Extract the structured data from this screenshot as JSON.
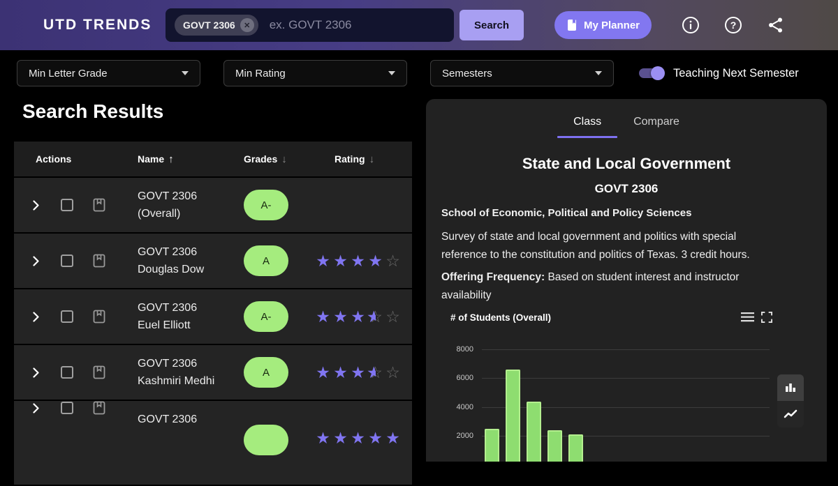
{
  "navbar": {
    "logo": "UTD TRENDS",
    "search": {
      "chip": "GOVT 2306",
      "placeholder": "ex. GOVT 2306"
    },
    "search_button": "Search",
    "planner_button": "My Planner",
    "icons": [
      "info-icon",
      "help-icon",
      "share-icon"
    ]
  },
  "filters": {
    "dropdowns": [
      "Min Letter Grade",
      "Min Rating",
      "Semesters"
    ],
    "toggle": {
      "label": "Teaching Next Semester",
      "on": true
    }
  },
  "results": {
    "title": "Search Results",
    "columns": [
      {
        "label": "Actions",
        "sort": null,
        "active": false
      },
      {
        "label": "Name",
        "sort": "asc",
        "active": true
      },
      {
        "label": "Grades",
        "sort": "desc",
        "active": false
      },
      {
        "label": "Rating",
        "sort": "desc",
        "active": false
      }
    ],
    "rows": [
      {
        "name": "GOVT 2306 (Overall)",
        "grade": "A-",
        "stars": []
      },
      {
        "name": "GOVT 2306 Douglas Dow",
        "grade": "A",
        "stars": [
          1,
          1,
          1,
          1,
          0
        ]
      },
      {
        "name": "GOVT 2306 Euel Elliott",
        "grade": "A-",
        "stars": [
          1,
          1,
          1,
          0.5,
          0
        ]
      },
      {
        "name": "GOVT 2306 Kashmiri Medhi",
        "grade": "A",
        "stars": [
          1,
          1,
          1,
          0.5,
          0
        ]
      },
      {
        "name": "GOVT 2306",
        "grade": "",
        "stars": [
          1,
          1,
          1,
          1,
          1
        ],
        "cut_off": true
      }
    ]
  },
  "panel": {
    "tabs": [
      {
        "label": "Class",
        "active": true
      },
      {
        "label": "Compare",
        "active": false
      }
    ],
    "course_title": "State and Local Government",
    "course_code": "GOVT 2306",
    "school": "School of Economic, Political and Policy Sciences",
    "description": "Survey of state and local government and politics with special reference to the constitution and politics of Texas. 3 credit hours.",
    "offering_label": "Offering Frequency:",
    "offering_text": " Based on student interest and instructor availability"
  },
  "chart_data": {
    "type": "bar",
    "title": "# of Students (Overall)",
    "values": [
      2500,
      6600,
      4350,
      2400,
      2100
    ],
    "yticks": [
      2000,
      4000,
      6000,
      8000
    ],
    "ylim_visible": [
      2000,
      8000
    ],
    "x_tick_labels_visible": false,
    "grid": true,
    "bar_color": "#8edd70",
    "chart_type_options": [
      "bar-chart-icon",
      "line-chart-icon"
    ],
    "chart_type_selected": "bar-chart-icon"
  },
  "colors": {
    "accent_purple": "#8075f1",
    "light_purple": "#a89ff2",
    "grade_green": "#a5ec7e",
    "bar_green": "#8edd70",
    "panel_bg": "#222222",
    "row_bg": "#242424"
  }
}
